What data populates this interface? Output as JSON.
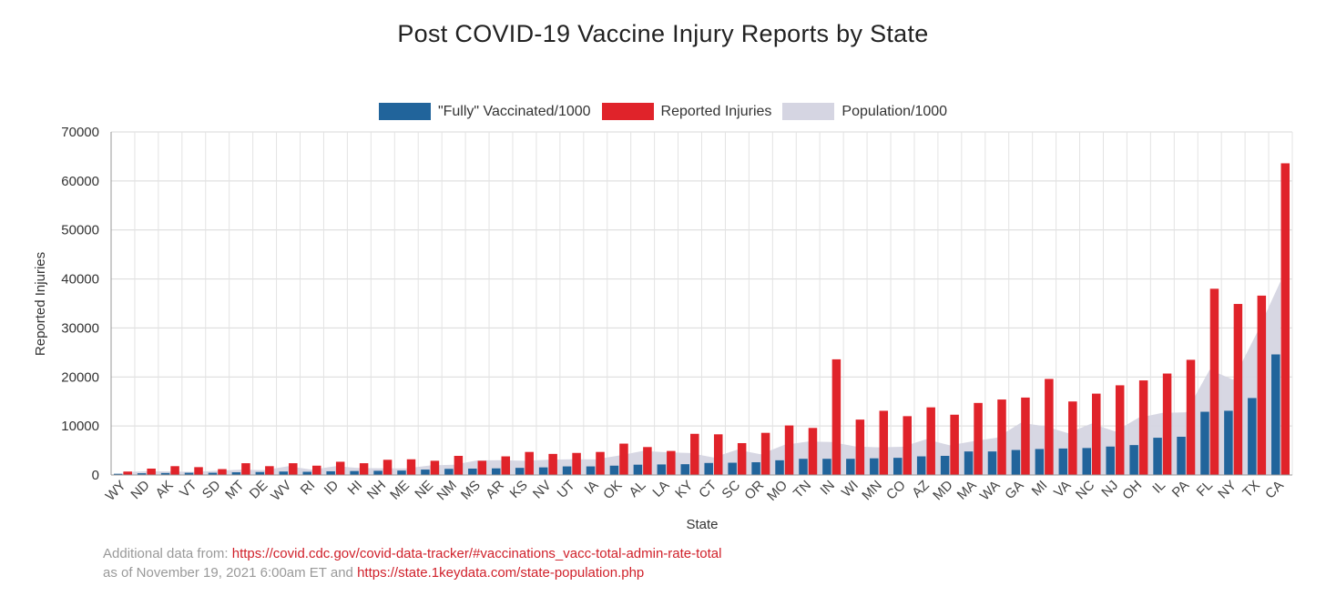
{
  "chart_data": {
    "type": "bar",
    "title": "Post COVID-19 Vaccine Injury Reports by State",
    "xlabel": "State",
    "ylabel": "Reported Injuries",
    "ylim": [
      0,
      70000
    ],
    "yticks": [
      "0",
      "10000",
      "20000",
      "30000",
      "40000",
      "50000",
      "60000",
      "70000"
    ],
    "grid": true,
    "legend_position": "top-center",
    "categories": [
      "WY",
      "ND",
      "AK",
      "VT",
      "SD",
      "MT",
      "DE",
      "WV",
      "RI",
      "ID",
      "HI",
      "NH",
      "ME",
      "NE",
      "NM",
      "MS",
      "AR",
      "KS",
      "NV",
      "UT",
      "IA",
      "OK",
      "AL",
      "LA",
      "KY",
      "CT",
      "SC",
      "OR",
      "MO",
      "TN",
      "IN",
      "WI",
      "MN",
      "CO",
      "AZ",
      "MD",
      "MA",
      "WA",
      "GA",
      "MI",
      "VA",
      "NC",
      "NJ",
      "OH",
      "IL",
      "PA",
      "FL",
      "NY",
      "TX",
      "CA"
    ],
    "series": [
      {
        "name": "\"Fully\" Vaccinated/1000",
        "kind": "bar",
        "color": "#21649b",
        "values": [
          250,
          350,
          400,
          450,
          450,
          550,
          600,
          700,
          650,
          750,
          800,
          850,
          900,
          1100,
          1250,
          1300,
          1350,
          1450,
          1550,
          1750,
          1750,
          1900,
          2100,
          2150,
          2200,
          2450,
          2500,
          2600,
          3000,
          3300,
          3300,
          3300,
          3400,
          3500,
          3800,
          3900,
          4800,
          4800,
          5100,
          5300,
          5400,
          5500,
          5800,
          6100,
          7600,
          7800,
          12900,
          13100,
          15700,
          24600
        ]
      },
      {
        "name": "Reported Injuries",
        "kind": "bar",
        "color": "#e0232a",
        "values": [
          700,
          1300,
          1800,
          1600,
          1200,
          2400,
          1800,
          2400,
          1900,
          2700,
          2400,
          3100,
          3200,
          2900,
          3900,
          2900,
          3800,
          4700,
          4300,
          4500,
          4700,
          6400,
          5700,
          4900,
          8400,
          8300,
          6500,
          8600,
          10100,
          9600,
          23600,
          11300,
          13100,
          12000,
          13800,
          12300,
          14700,
          15400,
          15800,
          19600,
          15000,
          16600,
          18300,
          19300,
          20700,
          23500,
          38000,
          34900,
          36600,
          63600
        ]
      },
      {
        "name": "Population/1000",
        "kind": "area",
        "color": "#d5d5e2",
        "values": [
          580,
          760,
          730,
          620,
          880,
          1080,
          990,
          1790,
          1100,
          1790,
          1420,
          1360,
          1340,
          1940,
          2100,
          2980,
          3020,
          2910,
          3100,
          3210,
          3190,
          3960,
          4900,
          4650,
          4470,
          3570,
          5150,
          4220,
          6140,
          6830,
          6730,
          5820,
          5640,
          5760,
          7280,
          6050,
          6890,
          7610,
          10620,
          9990,
          8540,
          10490,
          8880,
          11690,
          12670,
          12800,
          21480,
          19450,
          28990,
          39510
        ]
      }
    ]
  },
  "footnote": {
    "line1_prefix": "Additional data from: ",
    "line1_link": "https://covid.cdc.gov/covid-data-tracker/#vaccinations_vacc-total-admin-rate-total",
    "line2_prefix": "as of November 19, 2021 6:00am ET and ",
    "line2_link": "https://state.1keydata.com/state-population.php"
  }
}
